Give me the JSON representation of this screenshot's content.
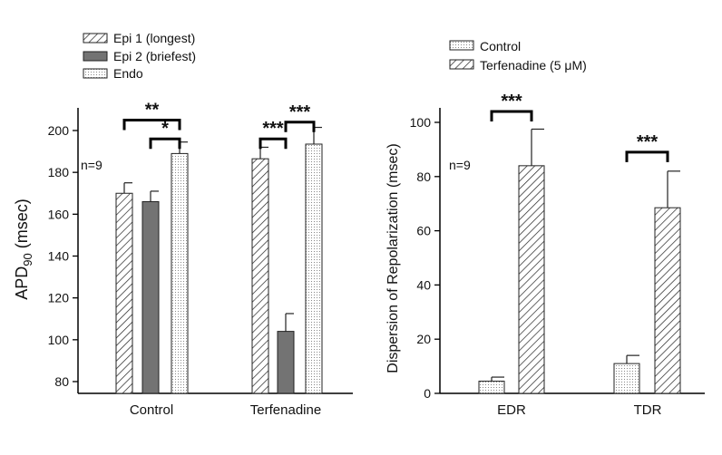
{
  "chart_data": [
    {
      "type": "bar",
      "ylabel": "APD90 (msec)",
      "ylabel_main": "APD",
      "ylabel_sub": "90",
      "ylabel_unit": " (msec)",
      "ylim": [
        75,
        210
      ],
      "yticks": [
        80,
        100,
        120,
        140,
        160,
        180,
        200
      ],
      "categories": [
        "Control",
        "Terfenadine"
      ],
      "annotation": "n=9",
      "series": [
        {
          "name": "Epi 1 (longest)",
          "pattern": "hatch",
          "values": [
            170,
            186.5
          ],
          "errors": [
            5,
            5.5
          ]
        },
        {
          "name": "Epi 2 (briefest)",
          "pattern": "solid",
          "values": [
            166,
            104
          ],
          "errors": [
            5,
            8.5
          ]
        },
        {
          "name": "Endo",
          "pattern": "dots",
          "values": [
            189,
            193.5
          ],
          "errors": [
            5.5,
            8
          ]
        }
      ],
      "significance": [
        {
          "group": 0,
          "from": 0,
          "to": 2,
          "label": "**",
          "level": 205
        },
        {
          "group": 0,
          "from": 1,
          "to": 2,
          "label": "*",
          "level": 196
        },
        {
          "group": 1,
          "from": 0,
          "to": 1,
          "label": "***",
          "level": 196
        },
        {
          "group": 1,
          "from": 1,
          "to": 2,
          "label": "***",
          "level": 204
        }
      ]
    },
    {
      "type": "bar",
      "ylabel": "Dispersion of Repolarization (msec)",
      "ylim": [
        0,
        100
      ],
      "yticks": [
        0,
        20,
        40,
        60,
        80,
        100
      ],
      "categories": [
        "EDR",
        "TDR"
      ],
      "annotation": "n=9",
      "series": [
        {
          "name": "Control",
          "pattern": "dots",
          "values": [
            4.5,
            11
          ],
          "errors": [
            1.5,
            3
          ]
        },
        {
          "name": "Terfenadine (5 μM)",
          "pattern": "hatch",
          "values": [
            84,
            68.5
          ],
          "errors": [
            13.5,
            13.5
          ]
        }
      ],
      "significance": [
        {
          "group": 0,
          "from": 0,
          "to": 1,
          "label": "***",
          "level": 104
        },
        {
          "group": 1,
          "from": 0,
          "to": 1,
          "label": "***",
          "level": 89
        }
      ]
    }
  ]
}
